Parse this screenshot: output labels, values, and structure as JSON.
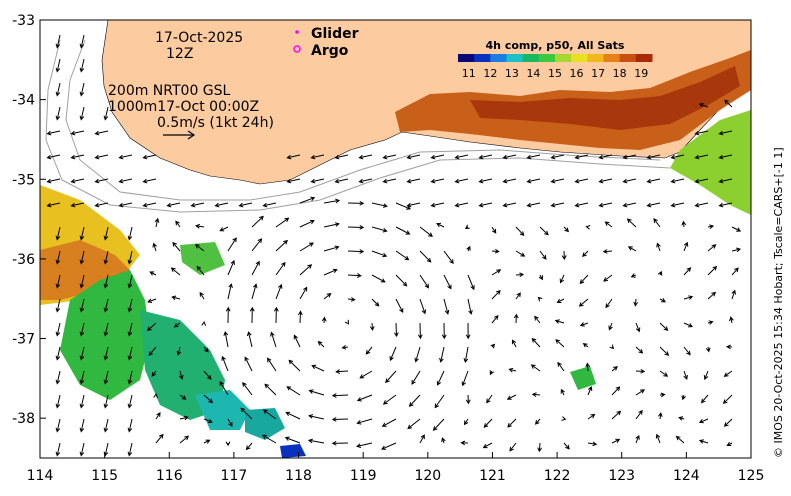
{
  "map": {
    "date_line": "17-Oct-2025",
    "hour_line": "12Z",
    "contour_line_1": "200m  NRT00 GSL",
    "contour_line_2": "1000m17-Oct 00:00Z",
    "scale_line": "0.5m/s (1kt 24h)",
    "legend": [
      {
        "label": "Glider",
        "symbol": "dot",
        "color": "#ff00ff"
      },
      {
        "label": "Argo",
        "symbol": "ring",
        "color": "#ff00ff"
      }
    ],
    "colorbar": {
      "title": "4h comp, p50, All Sats",
      "ticks": [
        "11",
        "12",
        "13",
        "14",
        "15",
        "16",
        "17",
        "18",
        "19"
      ],
      "min": 10.5,
      "max": 19.5,
      "colors": [
        "#08087a",
        "#0a30c0",
        "#1a7fe0",
        "#1cc0c8",
        "#18b860",
        "#3cc840",
        "#a8d830",
        "#e8e020",
        "#f0b818",
        "#e88018",
        "#c85010",
        "#a82a08"
      ]
    },
    "x_axis": {
      "labels": [
        "114",
        "115",
        "116",
        "117",
        "118",
        "119",
        "120",
        "121",
        "122",
        "123",
        "124",
        "125"
      ],
      "min": 114,
      "max": 125
    },
    "y_axis": {
      "labels": [
        "-33",
        "-34",
        "-35",
        "-36",
        "-37",
        "-38"
      ],
      "min": -38.5,
      "max": -33
    },
    "credit": "© IMOS 20-Oct-2025 15:34 Hobart; Tscale=CARS+[-1 1]",
    "colors": {
      "land": "#fdcba0",
      "arrow": "#000000",
      "isobath": "#a0a0a0"
    }
  }
}
